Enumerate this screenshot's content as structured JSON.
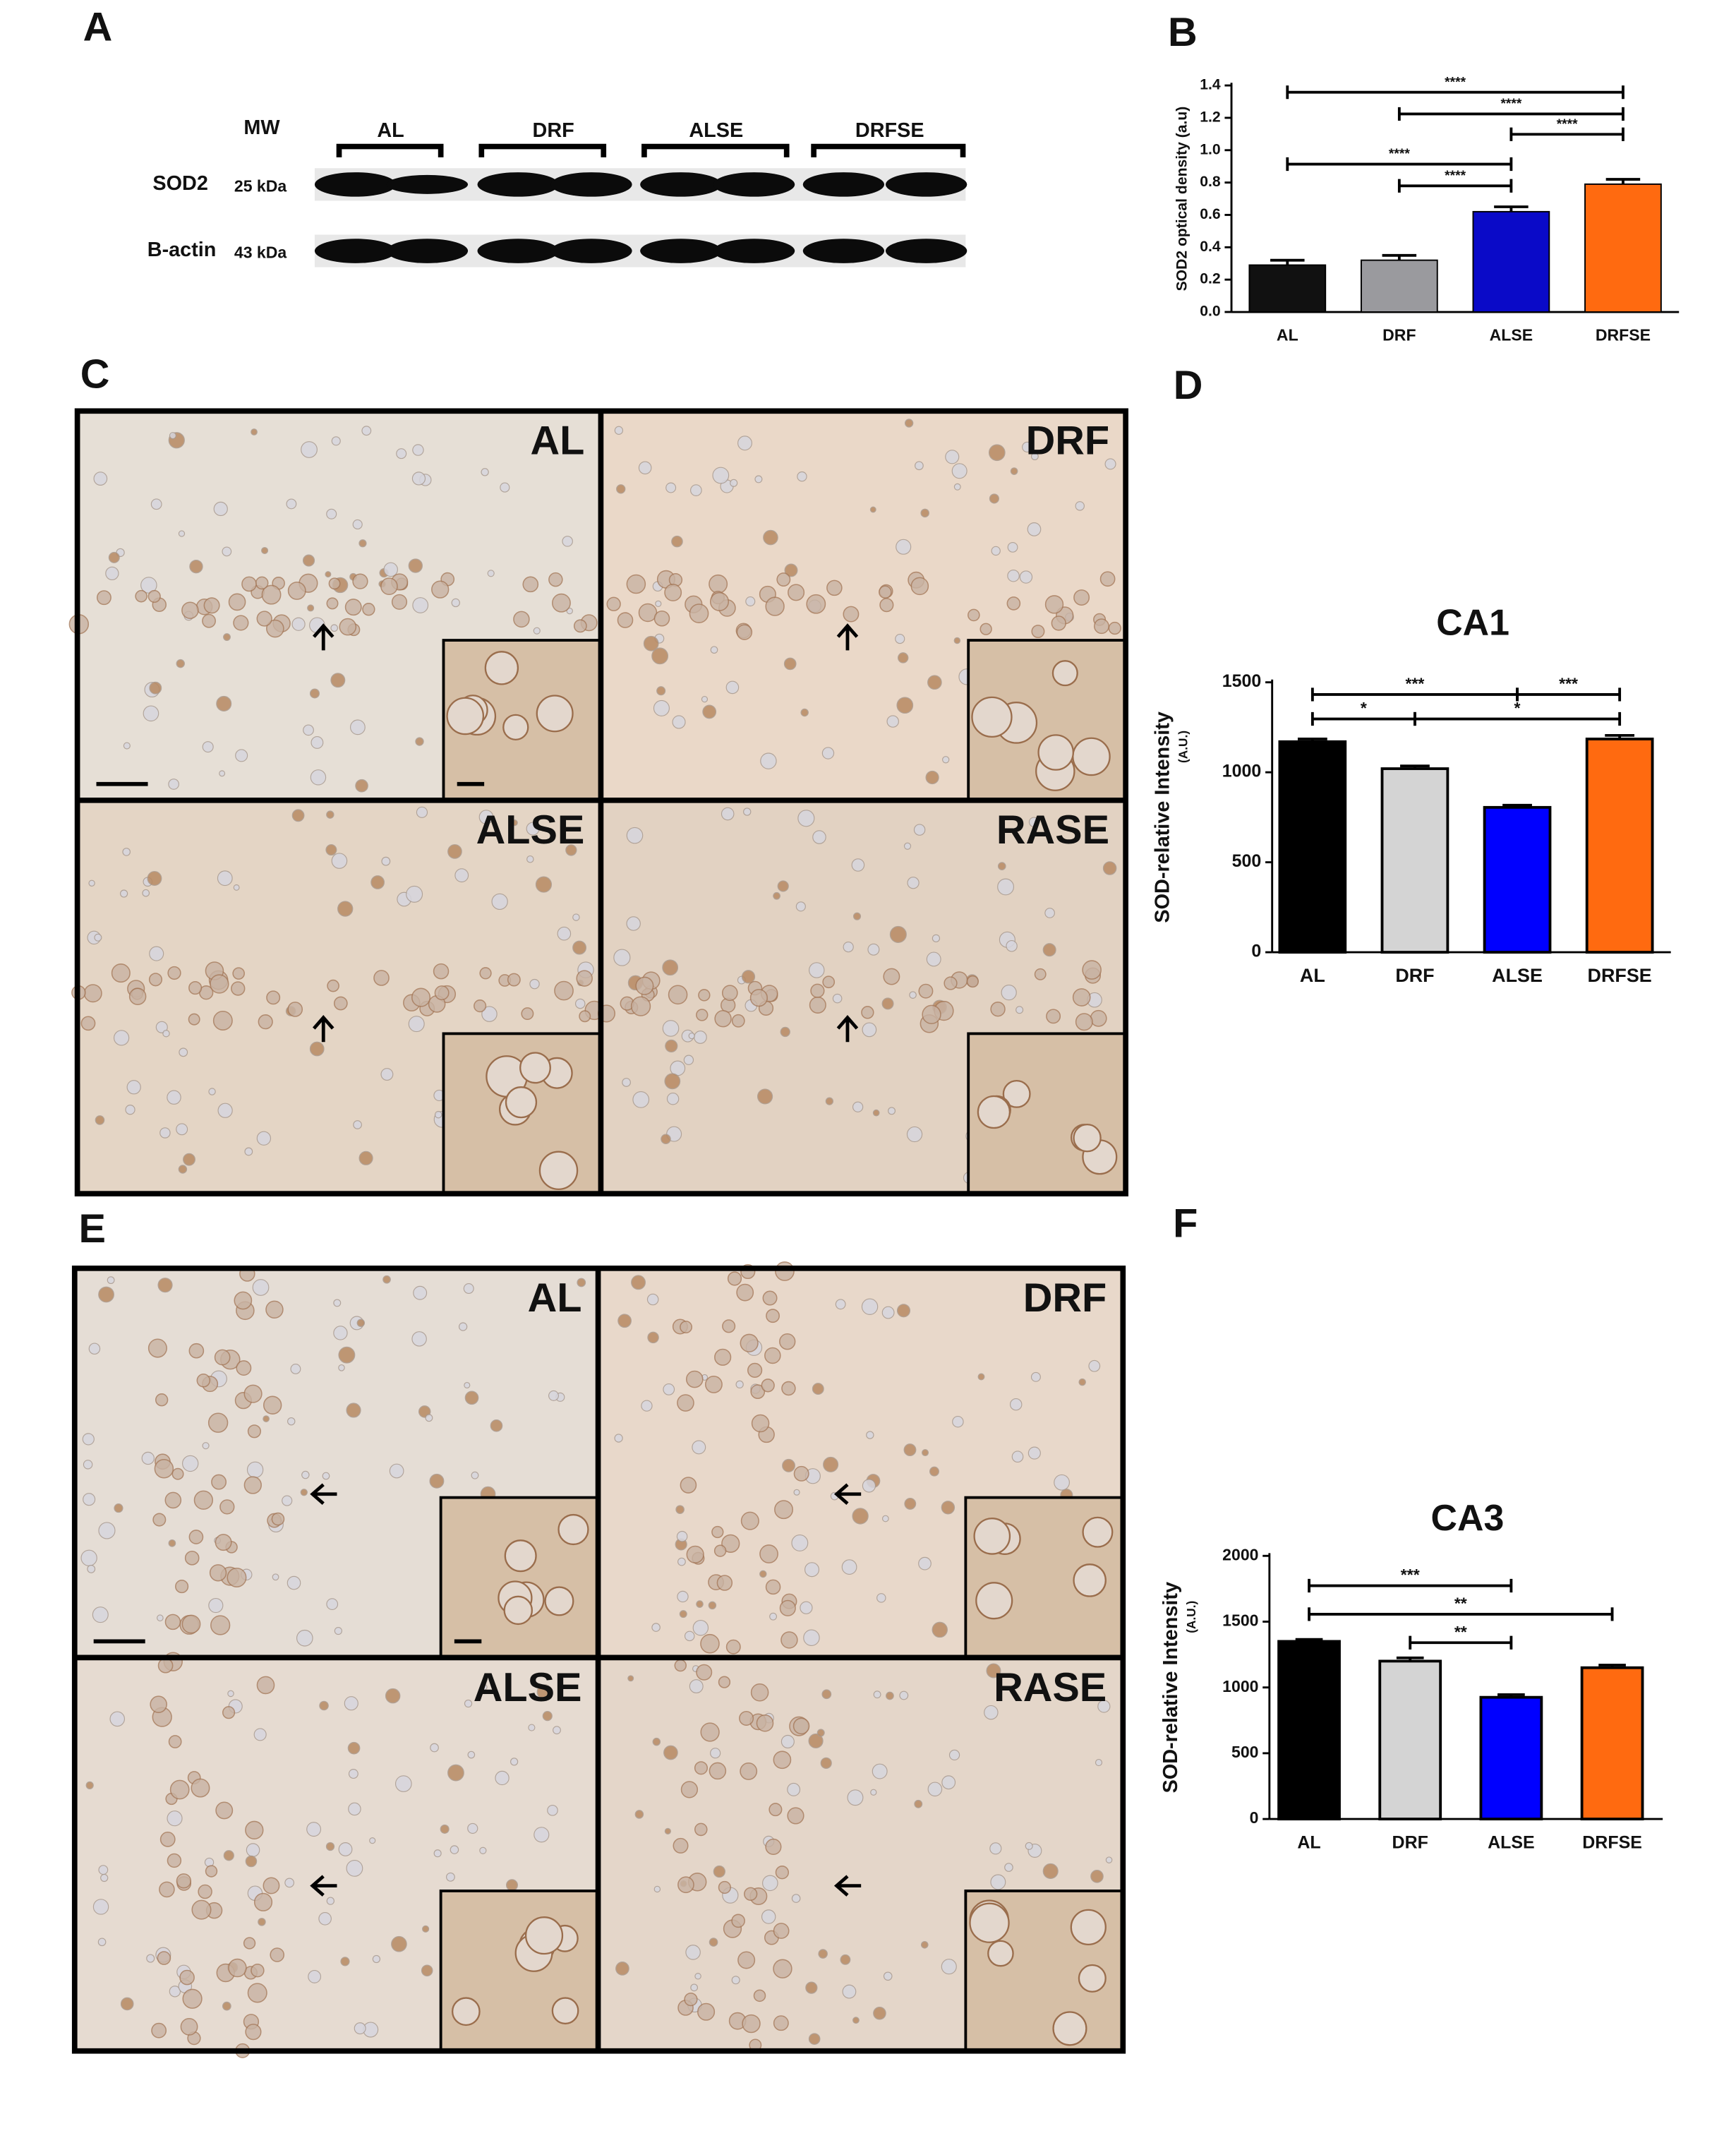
{
  "panel_labels": [
    "A",
    "B",
    "C",
    "D",
    "E",
    "F"
  ],
  "western_blot": {
    "mw_label": "MW",
    "groups": [
      "AL",
      "DRF",
      "ALSE",
      "DRFSE"
    ],
    "rows": [
      {
        "protein": "SOD2",
        "weight": "25 kDa"
      },
      {
        "protein": "B-actin",
        "weight": "43 kDa"
      }
    ]
  },
  "micrographs_c": [
    "AL",
    "DRF",
    "ALSE",
    "RASE"
  ],
  "micrographs_e": [
    "AL",
    "DRF",
    "ALSE",
    "RASE"
  ],
  "chart_data": [
    {
      "type": "bar",
      "ylabel": "SOD2 optical density (a.u)",
      "categories": [
        "AL",
        "DRF",
        "ALSE",
        "DRFSE"
      ],
      "values": [
        0.29,
        0.32,
        0.62,
        0.79
      ],
      "errors": [
        0.03,
        0.03,
        0.03,
        0.03
      ],
      "colors": [
        "#111111",
        "#9a9a9e",
        "#0a0ac8",
        "#ff6a10"
      ],
      "ylim": [
        0,
        1.4
      ],
      "yticks": [
        {
          "value": 0,
          "label": "0.0"
        },
        0.2,
        0.4,
        0.6,
        0.8,
        {
          "value": 1,
          "label": "1.0"
        },
        1.2,
        1.4
      ],
      "significance": [
        {
          "pair": [
            "AL",
            "DRFSE"
          ],
          "label": "****"
        },
        {
          "pair": [
            "DRF",
            "DRFSE"
          ],
          "label": "****"
        },
        {
          "pair": [
            "ALSE",
            "DRFSE"
          ],
          "label": "****"
        },
        {
          "pair": [
            "AL",
            "ALSE"
          ],
          "label": "****"
        },
        {
          "pair": [
            "DRF",
            "ALSE"
          ],
          "label": "****"
        }
      ]
    },
    {
      "type": "bar",
      "title": "CA1",
      "ylabel": "SOD-relative Intensity",
      "yunit": "(A.U.)",
      "categories": [
        "AL",
        "DRF",
        "ALSE",
        "DRFSE"
      ],
      "values": [
        1170,
        1020,
        805,
        1185
      ],
      "errors": [
        15,
        15,
        12,
        20
      ],
      "colors": [
        "#000000",
        "#d4d4d4",
        "#0000ff",
        "#ff6a10"
      ],
      "ylim": [
        0,
        1500
      ],
      "yticks": [
        0,
        500,
        1000,
        1500
      ],
      "significance": [
        {
          "pair": [
            "AL",
            "ALSE"
          ],
          "label": "***"
        },
        {
          "pair": [
            "ALSE",
            "DRFSE"
          ],
          "label": "***"
        },
        {
          "pair": [
            "AL",
            "DRF"
          ],
          "label": "*"
        },
        {
          "pair": [
            "DRF",
            "DRFSE"
          ],
          "label": "*"
        }
      ]
    },
    {
      "type": "bar",
      "title": "CA3",
      "ylabel": "SOD-relative Intensity",
      "yunit": "(A.U.)",
      "categories": [
        "AL",
        "DRF",
        "ALSE",
        "DRFSE"
      ],
      "values": [
        1350,
        1200,
        925,
        1150
      ],
      "errors": [
        15,
        25,
        20,
        20
      ],
      "colors": [
        "#000000",
        "#d4d4d4",
        "#0000ff",
        "#ff6a10"
      ],
      "ylim": [
        0,
        2000
      ],
      "yticks": [
        0,
        500,
        1000,
        1500,
        2000
      ],
      "significance": [
        {
          "pair": [
            "AL",
            "ALSE"
          ],
          "label": "***"
        },
        {
          "pair": [
            "AL",
            "DRFSE"
          ],
          "label": "**"
        },
        {
          "pair": [
            "DRF",
            "ALSE"
          ],
          "label": "**"
        }
      ]
    }
  ]
}
